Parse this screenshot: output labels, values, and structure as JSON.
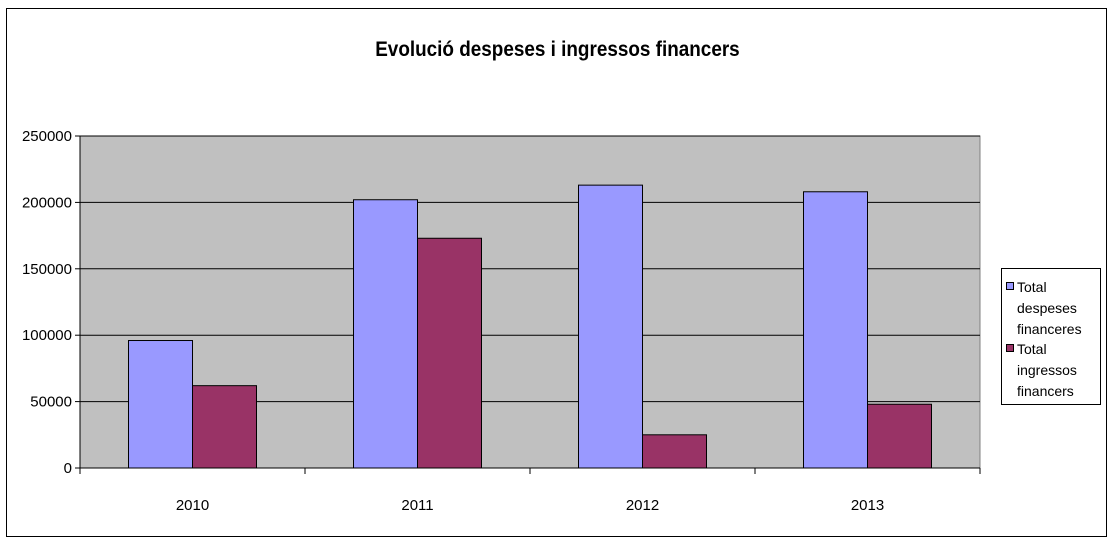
{
  "chart_data": {
    "type": "bar",
    "title": "Evolució despeses i ingressos financers",
    "categories": [
      "2010",
      "2011",
      "2012",
      "2013"
    ],
    "series": [
      {
        "name": "Total despeses financeres",
        "values": [
          96000,
          202000,
          213000,
          208000
        ],
        "color": "#9999ff"
      },
      {
        "name": "Total ingressos financers",
        "values": [
          62000,
          173000,
          25000,
          48000
        ],
        "color": "#993366"
      }
    ],
    "ylim": [
      0,
      250000
    ],
    "yticks": [
      "0",
      "50000",
      "100000",
      "150000",
      "200000",
      "250000"
    ],
    "grid": true,
    "plot_background": "#c0c0c0",
    "legend": "right"
  }
}
